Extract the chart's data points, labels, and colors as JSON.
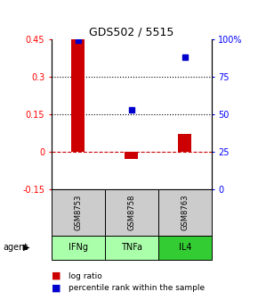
{
  "title": "GDS502 / 5515",
  "samples": [
    "GSM8753",
    "GSM8758",
    "GSM8763"
  ],
  "agents": [
    "IFNg",
    "TNFa",
    "IL4"
  ],
  "log_ratios": [
    0.45,
    -0.03,
    0.07
  ],
  "percentile_ranks": [
    99.5,
    53.0,
    88.0
  ],
  "bar_color": "#cc0000",
  "dot_color": "#0000cc",
  "ylim_left": [
    -0.15,
    0.45
  ],
  "ylim_right": [
    0,
    100
  ],
  "yticks_left": [
    -0.15,
    0.0,
    0.15,
    0.3,
    0.45
  ],
  "yticks_right": [
    0,
    25,
    50,
    75,
    100
  ],
  "ytick_labels_left": [
    "-0.15",
    "0",
    "0.15",
    "0.3",
    "0.45"
  ],
  "ytick_labels_right": [
    "0",
    "25",
    "50",
    "75",
    "100%"
  ],
  "hlines": [
    0.15,
    0.3
  ],
  "zero_line": 0.0,
  "sample_box_color": "#cccccc",
  "agent_colors": [
    "#aaffaa",
    "#aaffaa",
    "#33cc33"
  ],
  "bar_width": 0.25,
  "x_positions": [
    0,
    1,
    2
  ],
  "legend_log_ratio_color": "#cc0000",
  "legend_percentile_color": "#0000cc",
  "dot_size": 5
}
